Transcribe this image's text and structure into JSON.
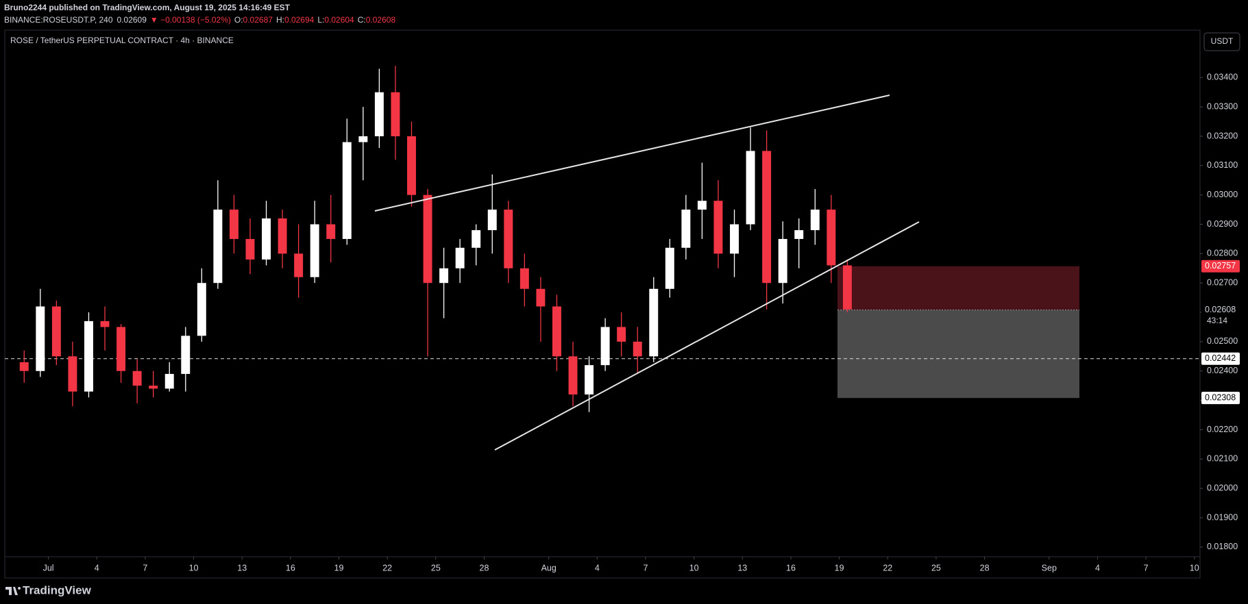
{
  "header": {
    "author_line": "Bruno2244 published on TradingView.com, August 19, 2025 14:16:49 EST",
    "symbol": "BINANCE:ROSEUSDT.P, 240",
    "last": "0.02609",
    "change": "▼ −0.00138 (−5.02%)",
    "ohlc": [
      {
        "label": "O:",
        "value": "0.02687"
      },
      {
        "label": "H:",
        "value": "0.02694"
      },
      {
        "label": "L:",
        "value": "0.02604"
      },
      {
        "label": "C:",
        "value": "0.02608"
      }
    ]
  },
  "footer": {
    "brand": "TradingView"
  },
  "chart_data": {
    "type": "candlestick",
    "title": "ROSE / TetherUS PERPETUAL CONTRACT · 4h · BINANCE",
    "currency": "USDT",
    "up_color": "#ffffff",
    "down_color": "#f23645",
    "x": [
      -2,
      -1,
      0,
      1,
      2,
      3,
      4,
      5,
      6,
      7,
      8,
      9,
      10,
      11,
      12,
      13,
      14,
      15,
      16,
      17,
      18,
      19,
      20,
      21,
      22,
      23,
      24,
      25,
      26,
      27,
      28,
      29,
      30,
      31,
      32,
      33,
      34,
      35,
      36,
      37,
      38,
      39,
      40,
      41,
      42,
      43,
      44,
      45,
      46,
      47,
      48,
      49
    ],
    "open": [
      0.0243,
      0.024,
      0.0262,
      0.0245,
      0.0233,
      0.0257,
      0.0255,
      0.024,
      0.0235,
      0.0234,
      0.0239,
      0.0252,
      0.027,
      0.0295,
      0.0285,
      0.0278,
      0.0292,
      0.028,
      0.0272,
      0.029,
      0.0285,
      0.0318,
      0.032,
      0.0335,
      0.032,
      0.03,
      0.027,
      0.0275,
      0.0282,
      0.0288,
      0.0295,
      0.0275,
      0.0268,
      0.0262,
      0.0245,
      0.0232,
      0.0242,
      0.0255,
      0.025,
      0.0245,
      0.0268,
      0.0282,
      0.0295,
      0.0298,
      0.028,
      0.029,
      0.0315,
      0.027,
      0.0285,
      0.0288,
      0.0295,
      0.0276
    ],
    "high": [
      0.0247,
      0.0268,
      0.0264,
      0.025,
      0.026,
      0.0262,
      0.0256,
      0.0244,
      0.024,
      0.0243,
      0.0255,
      0.0275,
      0.0305,
      0.03,
      0.0292,
      0.0298,
      0.0295,
      0.029,
      0.0298,
      0.03,
      0.0326,
      0.033,
      0.0343,
      0.0344,
      0.0325,
      0.0302,
      0.0282,
      0.0285,
      0.029,
      0.0307,
      0.0298,
      0.028,
      0.0272,
      0.0266,
      0.025,
      0.0245,
      0.0258,
      0.026,
      0.0255,
      0.0272,
      0.0285,
      0.03,
      0.0311,
      0.0305,
      0.0295,
      0.0323,
      0.0322,
      0.0291,
      0.0292,
      0.0302,
      0.03,
      0.0278
    ],
    "low": [
      0.0236,
      0.0238,
      0.0242,
      0.0228,
      0.0231,
      0.0247,
      0.0236,
      0.0229,
      0.0231,
      0.0233,
      0.0233,
      0.025,
      0.0268,
      0.028,
      0.0273,
      0.0276,
      0.0275,
      0.0265,
      0.027,
      0.0277,
      0.0283,
      0.0305,
      0.0316,
      0.0312,
      0.0296,
      0.0245,
      0.0258,
      0.027,
      0.0276,
      0.028,
      0.027,
      0.0262,
      0.025,
      0.024,
      0.0228,
      0.0226,
      0.024,
      0.0245,
      0.0239,
      0.0243,
      0.0265,
      0.0278,
      0.0285,
      0.0275,
      0.0272,
      0.0288,
      0.0261,
      0.0263,
      0.0275,
      0.0283,
      0.027,
      0.026
    ],
    "close": [
      0.024,
      0.0262,
      0.0245,
      0.0233,
      0.0257,
      0.0255,
      0.024,
      0.0235,
      0.0234,
      0.0239,
      0.0252,
      0.027,
      0.0295,
      0.0285,
      0.0278,
      0.0292,
      0.028,
      0.0272,
      0.029,
      0.0285,
      0.0318,
      0.032,
      0.0335,
      0.032,
      0.03,
      0.027,
      0.0275,
      0.0282,
      0.0288,
      0.0295,
      0.0275,
      0.0268,
      0.0262,
      0.0245,
      0.0232,
      0.0242,
      0.0255,
      0.025,
      0.0245,
      0.0268,
      0.0282,
      0.0295,
      0.0298,
      0.028,
      0.029,
      0.0315,
      0.027,
      0.0285,
      0.0288,
      0.0295,
      0.0276,
      0.0261
    ],
    "xlim": [
      -2.7,
      71.35
    ],
    "xticks": [
      {
        "value": 0,
        "label": "Jul"
      },
      {
        "value": 3,
        "label": "4"
      },
      {
        "value": 6,
        "label": "7"
      },
      {
        "value": 9,
        "label": "10"
      },
      {
        "value": 12,
        "label": "13"
      },
      {
        "value": 15,
        "label": "16"
      },
      {
        "value": 18,
        "label": "19"
      },
      {
        "value": 21,
        "label": "22"
      },
      {
        "value": 24,
        "label": "25"
      },
      {
        "value": 27,
        "label": "28"
      },
      {
        "value": 31,
        "label": "Aug"
      },
      {
        "value": 34,
        "label": "4"
      },
      {
        "value": 37,
        "label": "7"
      },
      {
        "value": 40,
        "label": "10"
      },
      {
        "value": 43,
        "label": "13"
      },
      {
        "value": 46,
        "label": "16"
      },
      {
        "value": 49,
        "label": "19"
      },
      {
        "value": 52,
        "label": "22"
      },
      {
        "value": 55,
        "label": "25"
      },
      {
        "value": 58,
        "label": "28"
      },
      {
        "value": 62,
        "label": "Sep"
      },
      {
        "value": 65,
        "label": "4"
      },
      {
        "value": 68,
        "label": "7"
      },
      {
        "value": 71,
        "label": "10"
      }
    ],
    "ylim": [
      0.01767,
      0.03557
    ],
    "yticks": [
      {
        "value": 0.018,
        "label": "0.01800"
      },
      {
        "value": 0.019,
        "label": "0.01900"
      },
      {
        "value": 0.02,
        "label": "0.02000"
      },
      {
        "value": 0.021,
        "label": "0.02100"
      },
      {
        "value": 0.022,
        "label": "0.02200"
      },
      {
        "value": 0.023,
        "label": "0.02300"
      },
      {
        "value": 0.024,
        "label": "0.02400"
      },
      {
        "value": 0.025,
        "label": "0.02500"
      },
      {
        "value": 0.026,
        "label": "0.02600"
      },
      {
        "value": 0.027,
        "label": "0.02700"
      },
      {
        "value": 0.028,
        "label": "0.02800"
      },
      {
        "value": 0.029,
        "label": "0.02900"
      },
      {
        "value": 0.03,
        "label": "0.03000"
      },
      {
        "value": 0.031,
        "label": "0.03100"
      },
      {
        "value": 0.032,
        "label": "0.03200"
      },
      {
        "value": 0.033,
        "label": "0.03300"
      },
      {
        "value": 0.034,
        "label": "0.03400"
      }
    ],
    "position": {
      "stop": 0.02757,
      "entry": 0.02608,
      "target": 0.02308,
      "stop_color": "#4a1219",
      "target_color": "#4b4b4b"
    },
    "countdown": "43:14",
    "hline": 0.02442
  }
}
